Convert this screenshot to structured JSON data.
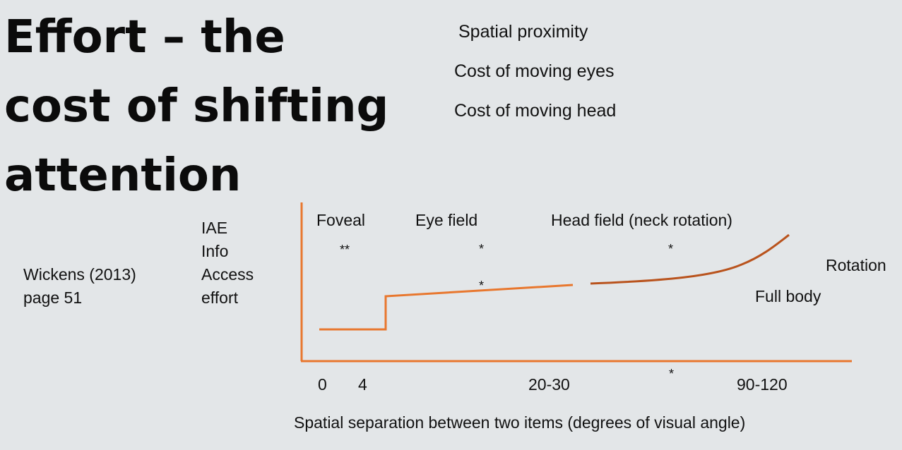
{
  "title": {
    "line1": "Effort – the",
    "line2": "cost of shifting",
    "line3": "attention"
  },
  "bullets": [
    "Spatial proximity",
    "Cost of moving eyes",
    "Cost of moving head"
  ],
  "citation": {
    "line1": "Wickens (2013)",
    "line2": "page 51"
  },
  "y_axis_label": {
    "line1": "IAE",
    "line2": "Info",
    "line3": "Access",
    "line4": "effort"
  },
  "region_labels": {
    "foveal": "Foveal",
    "eye_field": "Eye field",
    "head_field": "Head field (neck rotation)",
    "rotation": "Rotation",
    "full_body": "Full body"
  },
  "stars": {
    "foveal": "**",
    "eye_field": "*",
    "eye_line": "*",
    "head_field": "*",
    "axis": "*"
  },
  "x_ticks": {
    "t0": "0",
    "t4": "4",
    "t20_30": "20-30",
    "t90_120": "90-120"
  },
  "x_axis_label": "Spatial separation between two items (degrees of visual angle)",
  "colors": {
    "axis": "#e8772e",
    "curve_low": "#e8772e",
    "curve_high": "#b9531d"
  }
}
